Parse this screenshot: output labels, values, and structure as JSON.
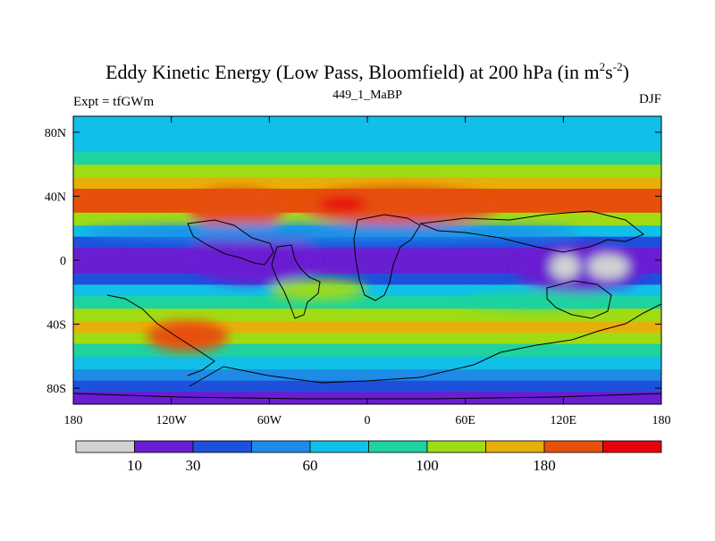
{
  "chart_data": {
    "type": "heatmap",
    "title": {
      "main": "Eddy Kinetic Energy (Low Pass, Bloomfield) at 200 hPa (in m",
      "sup1": "2",
      "mid": "s",
      "sup2": "-2",
      "end": ")"
    },
    "left_label": "Expt = tfGWm",
    "center_label": "449_1_MaBP",
    "right_label": "DJF",
    "x_axis": {
      "range": [
        -180,
        180
      ],
      "ticks": [
        {
          "value": -180,
          "label": "180"
        },
        {
          "value": -120,
          "label": "120W"
        },
        {
          "value": -60,
          "label": "60W"
        },
        {
          "value": 0,
          "label": "0"
        },
        {
          "value": 60,
          "label": "60E"
        },
        {
          "value": 120,
          "label": "120E"
        },
        {
          "value": 180,
          "label": "180"
        }
      ]
    },
    "y_axis": {
      "range": [
        -90,
        90
      ],
      "ticks": [
        {
          "value": 80,
          "label": "80N"
        },
        {
          "value": 40,
          "label": "40N"
        },
        {
          "value": 0,
          "label": "0"
        },
        {
          "value": -40,
          "label": "40S"
        },
        {
          "value": -80,
          "label": "80S"
        }
      ]
    },
    "colorbar": {
      "colors": [
        "#d2d2d2",
        "#6a1ed2",
        "#1e50dc",
        "#1e8ce6",
        "#10c0e8",
        "#1ed3a0",
        "#a0dc14",
        "#e6af0a",
        "#e6500a",
        "#e6000a"
      ],
      "labels": [
        {
          "after_box": 1,
          "label": "10"
        },
        {
          "after_box": 2,
          "label": "30"
        },
        {
          "after_box": 4,
          "label": "60"
        },
        {
          "after_box": 6,
          "label": "100"
        },
        {
          "after_box": 8,
          "label": "180"
        }
      ]
    },
    "zonal_profile_lat": [
      -90,
      -82,
      -75,
      -68,
      -60,
      -52,
      -45,
      -38,
      -30,
      -22,
      -15,
      -8,
      0,
      8,
      15,
      22,
      30,
      38,
      45,
      52,
      60,
      68,
      75,
      82,
      90
    ],
    "zonal_profile_level": [
      1.5,
      1,
      2,
      3,
      4,
      5,
      6,
      7,
      5.5,
      4.5,
      3,
      1.5,
      1,
      1.5,
      3,
      5,
      7,
      8,
      7,
      6,
      5,
      4,
      3.5,
      4,
      4
    ],
    "regions": [
      {
        "lon": [
          -110,
          -50
        ],
        "lat": [
          20,
          45
        ],
        "level": 8
      },
      {
        "lon": [
          -40,
          80
        ],
        "lat": [
          22,
          46
        ],
        "level": 8
      },
      {
        "lon": [
          -30,
          0
        ],
        "lat": [
          30,
          40
        ],
        "level": 9
      },
      {
        "lon": [
          -135,
          -85
        ],
        "lat": [
          -57,
          -38
        ],
        "level": 8
      },
      {
        "lon": [
          -110,
          -30
        ],
        "lat": [
          -15,
          18
        ],
        "level": 1
      },
      {
        "lon": [
          90,
          170
        ],
        "lat": [
          -20,
          10
        ],
        "level": 1
      },
      {
        "lon": [
          112,
          130
        ],
        "lat": [
          -12,
          4
        ],
        "level": 0
      },
      {
        "lon": [
          135,
          160
        ],
        "lat": [
          -12,
          4
        ],
        "level": 0
      },
      {
        "lon": [
          -175,
          130
        ],
        "lat": [
          12,
          23
        ],
        "level": 3
      },
      {
        "lon": [
          -60,
          0
        ],
        "lat": [
          -25,
          -12
        ],
        "level": 6
      },
      {
        "lon": [
          60,
          150
        ],
        "lat": [
          -30,
          -20
        ],
        "level": 5
      }
    ]
  }
}
